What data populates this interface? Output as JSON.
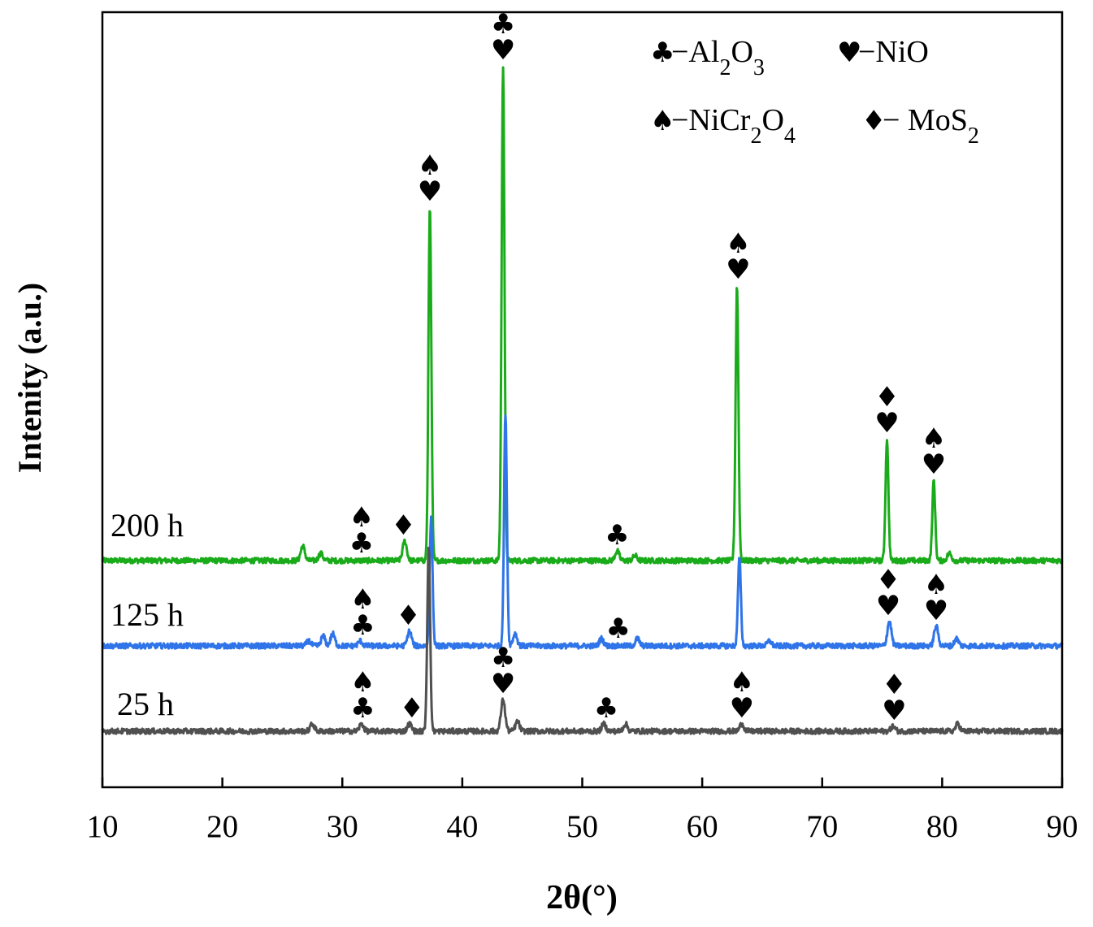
{
  "chart_data": {
    "type": "line",
    "xlabel": "2θ(°)",
    "ylabel": "Intenity (a.u.)",
    "xlim": [
      10,
      90
    ],
    "xticks": [
      "10",
      "20",
      "30",
      "40",
      "50",
      "60",
      "70",
      "80",
      "90"
    ],
    "y_ticks_shown": false,
    "legend": {
      "placement": "top-right",
      "entries": [
        {
          "symbol": "♣",
          "text": "−Al",
          "sub1": "2",
          "text2": "O",
          "sub2": "3"
        },
        {
          "symbol": "♥",
          "text": "−NiO"
        },
        {
          "symbol": "♠",
          "text": "−NiCr",
          "sub1": "2",
          "text2": "O",
          "sub2": "4"
        },
        {
          "symbol": "♦",
          "text": "− MoS",
          "sub1": "2"
        }
      ]
    },
    "series": [
      {
        "name": "200 h",
        "color": "#1aab1a",
        "baseline": 0.7,
        "peaks": [
          {
            "x": 26.7,
            "h": 0.06
          },
          {
            "x": 28.2,
            "h": 0.03
          },
          {
            "x": 35.2,
            "h": 0.08
          },
          {
            "x": 37.3,
            "h": 1.45
          },
          {
            "x": 43.4,
            "h": 2.03
          },
          {
            "x": 52.9,
            "h": 0.04
          },
          {
            "x": 54.4,
            "h": 0.02
          },
          {
            "x": 62.9,
            "h": 1.13
          },
          {
            "x": 75.4,
            "h": 0.5
          },
          {
            "x": 79.3,
            "h": 0.33
          },
          {
            "x": 80.6,
            "h": 0.03
          }
        ],
        "markers": [
          {
            "x": 31.6,
            "symbols": "♠♣"
          },
          {
            "x": 35.1,
            "symbols": "♦"
          },
          {
            "x": 37.3,
            "symbols": "♠♥"
          },
          {
            "x": 43.4,
            "symbols": "♣♥"
          },
          {
            "x": 52.9,
            "symbols": "♣"
          },
          {
            "x": 63.0,
            "symbols": "♠♥"
          },
          {
            "x": 75.4,
            "symbols": "♦♥"
          },
          {
            "x": 79.3,
            "symbols": "♠♥"
          }
        ]
      },
      {
        "name": "125 h",
        "color": "#2f74e8",
        "baseline": 0.35,
        "peaks": [
          {
            "x": 27.2,
            "h": 0.02
          },
          {
            "x": 28.4,
            "h": 0.04
          },
          {
            "x": 29.2,
            "h": 0.05
          },
          {
            "x": 31.5,
            "h": 0.02
          },
          {
            "x": 35.6,
            "h": 0.06
          },
          {
            "x": 37.4,
            "h": 0.52
          },
          {
            "x": 43.6,
            "h": 0.95
          },
          {
            "x": 44.4,
            "h": 0.05
          },
          {
            "x": 51.6,
            "h": 0.03
          },
          {
            "x": 54.6,
            "h": 0.03
          },
          {
            "x": 63.1,
            "h": 0.36
          },
          {
            "x": 65.6,
            "h": 0.02
          },
          {
            "x": 75.6,
            "h": 0.1
          },
          {
            "x": 79.5,
            "h": 0.08
          },
          {
            "x": 81.2,
            "h": 0.03
          }
        ],
        "markers": [
          {
            "x": 31.7,
            "symbols": "♠♣"
          },
          {
            "x": 35.5,
            "symbols": "♦"
          },
          {
            "x": 53.0,
            "symbols": "♣"
          },
          {
            "x": 75.5,
            "symbols": "♦♥"
          },
          {
            "x": 79.5,
            "symbols": "♠♥"
          }
        ]
      },
      {
        "name": "25 h",
        "color": "#505050",
        "baseline": 0.0,
        "peaks": [
          {
            "x": 27.5,
            "h": 0.03
          },
          {
            "x": 31.6,
            "h": 0.03
          },
          {
            "x": 35.6,
            "h": 0.03
          },
          {
            "x": 37.2,
            "h": 0.76
          },
          {
            "x": 43.4,
            "h": 0.13
          },
          {
            "x": 44.6,
            "h": 0.04
          },
          {
            "x": 51.8,
            "h": 0.03
          },
          {
            "x": 53.6,
            "h": 0.03
          },
          {
            "x": 63.3,
            "h": 0.03
          },
          {
            "x": 75.9,
            "h": 0.02
          },
          {
            "x": 81.3,
            "h": 0.03
          }
        ],
        "markers": [
          {
            "x": 31.7,
            "symbols": "♠♣"
          },
          {
            "x": 35.8,
            "symbols": "♦"
          },
          {
            "x": 43.4,
            "symbols": "♣♥"
          },
          {
            "x": 52.0,
            "symbols": "♣"
          },
          {
            "x": 63.3,
            "symbols": "♠♥"
          },
          {
            "x": 76.0,
            "symbols": "♦♥"
          }
        ]
      }
    ]
  }
}
